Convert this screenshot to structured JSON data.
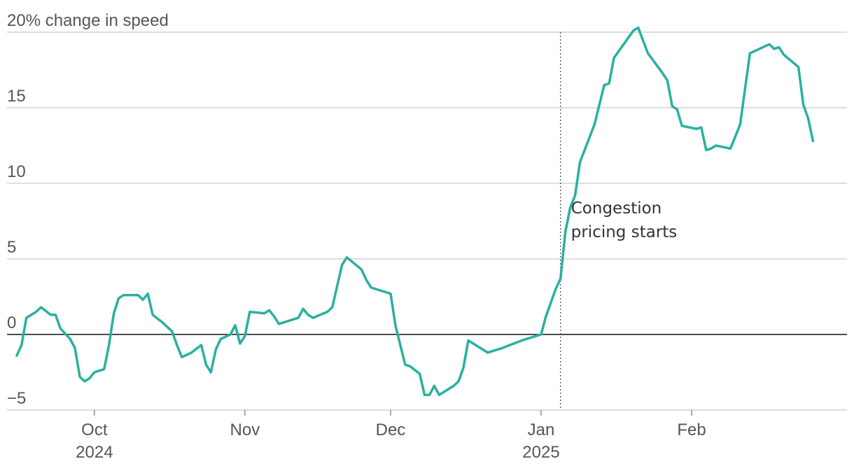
{
  "chart_data": {
    "type": "line",
    "title": "",
    "xlabel": "",
    "ylabel": "change in speed",
    "y_unit": "%",
    "ylim": [
      -5,
      20
    ],
    "y_ticks": [
      {
        "value": 20,
        "label": "20% change in speed"
      },
      {
        "value": 15,
        "label": "15"
      },
      {
        "value": 10,
        "label": "10"
      },
      {
        "value": 5,
        "label": "5"
      },
      {
        "value": 0,
        "label": "0"
      },
      {
        "value": -5,
        "label": "−5"
      }
    ],
    "xlim": [
      "2024-09-13",
      "2025-03-05"
    ],
    "x_ticks": [
      {
        "date": "2024-10-01",
        "label": "Oct",
        "sublabel": "2024"
      },
      {
        "date": "2024-11-01",
        "label": "Nov",
        "sublabel": ""
      },
      {
        "date": "2024-12-01",
        "label": "Dec",
        "sublabel": ""
      },
      {
        "date": "2025-01-01",
        "label": "Jan",
        "sublabel": "2025"
      },
      {
        "date": "2025-02-01",
        "label": "Feb",
        "sublabel": ""
      }
    ],
    "grid": true,
    "annotation": {
      "date": "2025-01-05",
      "lines": [
        "Congestion",
        "pricing starts"
      ]
    },
    "series": [
      {
        "name": "",
        "color": "#2ab0a0",
        "points": [
          [
            "2024-09-15",
            -1.4
          ],
          [
            "2024-09-16",
            -0.7
          ],
          [
            "2024-09-17",
            1.1
          ],
          [
            "2024-09-19",
            1.5
          ],
          [
            "2024-09-20",
            1.8
          ],
          [
            "2024-09-22",
            1.3
          ],
          [
            "2024-09-23",
            1.3
          ],
          [
            "2024-09-24",
            0.4
          ],
          [
            "2024-09-26",
            -0.3
          ],
          [
            "2024-09-27",
            -0.9
          ],
          [
            "2024-09-28",
            -2.8
          ],
          [
            "2024-09-29",
            -3.1
          ],
          [
            "2024-09-30",
            -2.9
          ],
          [
            "2024-10-01",
            -2.5
          ],
          [
            "2024-10-03",
            -2.3
          ],
          [
            "2024-10-04",
            -0.7
          ],
          [
            "2024-10-05",
            1.4
          ],
          [
            "2024-10-06",
            2.4
          ],
          [
            "2024-10-07",
            2.6
          ],
          [
            "2024-10-10",
            2.6
          ],
          [
            "2024-10-11",
            2.3
          ],
          [
            "2024-10-12",
            2.7
          ],
          [
            "2024-10-13",
            1.3
          ],
          [
            "2024-10-15",
            0.8
          ],
          [
            "2024-10-17",
            0.2
          ],
          [
            "2024-10-18",
            -0.7
          ],
          [
            "2024-10-19",
            -1.5
          ],
          [
            "2024-10-21",
            -1.2
          ],
          [
            "2024-10-23",
            -0.7
          ],
          [
            "2024-10-24",
            -2.0
          ],
          [
            "2024-10-25",
            -2.5
          ],
          [
            "2024-10-26",
            -1.0
          ],
          [
            "2024-10-27",
            -0.3
          ],
          [
            "2024-10-29",
            0.0
          ],
          [
            "2024-10-30",
            0.6
          ],
          [
            "2024-10-31",
            -0.6
          ],
          [
            "2024-11-01",
            -0.1
          ],
          [
            "2024-11-02",
            1.5
          ],
          [
            "2024-11-05",
            1.4
          ],
          [
            "2024-11-06",
            1.6
          ],
          [
            "2024-11-07",
            1.2
          ],
          [
            "2024-11-08",
            0.7
          ],
          [
            "2024-11-12",
            1.1
          ],
          [
            "2024-11-13",
            1.7
          ],
          [
            "2024-11-14",
            1.3
          ],
          [
            "2024-11-15",
            1.1
          ],
          [
            "2024-11-18",
            1.5
          ],
          [
            "2024-11-19",
            1.8
          ],
          [
            "2024-11-21",
            4.6
          ],
          [
            "2024-11-22",
            5.1
          ],
          [
            "2024-11-25",
            4.3
          ],
          [
            "2024-11-26",
            3.6
          ],
          [
            "2024-11-27",
            3.1
          ],
          [
            "2024-12-01",
            2.7
          ],
          [
            "2024-12-02",
            0.6
          ],
          [
            "2024-12-04",
            -2.0
          ],
          [
            "2024-12-05",
            -2.1
          ],
          [
            "2024-12-07",
            -2.6
          ],
          [
            "2024-12-08",
            -4.0
          ],
          [
            "2024-12-09",
            -4.0
          ],
          [
            "2024-12-10",
            -3.4
          ],
          [
            "2024-12-11",
            -4.0
          ],
          [
            "2024-12-13",
            -3.6
          ],
          [
            "2024-12-14",
            -3.4
          ],
          [
            "2024-12-15",
            -3.1
          ],
          [
            "2024-12-16",
            -2.2
          ],
          [
            "2024-12-17",
            -0.4
          ],
          [
            "2024-12-21",
            -1.2
          ],
          [
            "2024-12-24",
            -0.9
          ],
          [
            "2024-12-28",
            -0.4
          ],
          [
            "2025-01-01",
            0.0
          ],
          [
            "2025-01-02",
            1.2
          ],
          [
            "2025-01-04",
            3.0
          ],
          [
            "2025-01-05",
            3.7
          ],
          [
            "2025-01-06",
            6.8
          ],
          [
            "2025-01-07",
            8.4
          ],
          [
            "2025-01-08",
            9.2
          ],
          [
            "2025-01-09",
            11.4
          ],
          [
            "2025-01-12",
            13.9
          ],
          [
            "2025-01-13",
            15.2
          ],
          [
            "2025-01-14",
            16.5
          ],
          [
            "2025-01-15",
            16.6
          ],
          [
            "2025-01-16",
            18.3
          ],
          [
            "2025-01-20",
            20.1
          ],
          [
            "2025-01-21",
            20.3
          ],
          [
            "2025-01-23",
            18.6
          ],
          [
            "2025-01-26",
            17.3
          ],
          [
            "2025-01-27",
            16.8
          ],
          [
            "2025-01-28",
            15.1
          ],
          [
            "2025-01-29",
            14.9
          ],
          [
            "2025-01-30",
            13.8
          ],
          [
            "2025-02-02",
            13.6
          ],
          [
            "2025-02-03",
            13.7
          ],
          [
            "2025-02-04",
            12.2
          ],
          [
            "2025-02-05",
            12.3
          ],
          [
            "2025-02-06",
            12.5
          ],
          [
            "2025-02-09",
            12.3
          ],
          [
            "2025-02-11",
            13.9
          ],
          [
            "2025-02-13",
            18.6
          ],
          [
            "2025-02-17",
            19.2
          ],
          [
            "2025-02-18",
            18.9
          ],
          [
            "2025-02-19",
            19.0
          ],
          [
            "2025-02-20",
            18.5
          ],
          [
            "2025-02-23",
            17.7
          ],
          [
            "2025-02-24",
            15.2
          ],
          [
            "2025-02-25",
            14.3
          ],
          [
            "2025-02-26",
            12.8
          ]
        ]
      }
    ]
  }
}
